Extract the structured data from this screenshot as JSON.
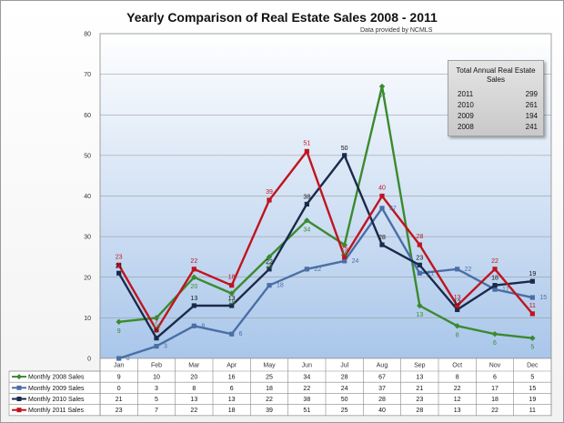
{
  "chart_data": {
    "type": "line",
    "title": "Yearly  Comparison of Real Estate Sales 2008 - 2011",
    "subtitle": "Data provided by NCMLS",
    "categories": [
      "Jan",
      "Feb",
      "Mar",
      "Apr",
      "May",
      "Jun",
      "Jul",
      "Aug",
      "Sep",
      "Oct",
      "Nov",
      "Dec"
    ],
    "ylim": [
      0,
      80
    ],
    "yticks": [
      0,
      10,
      20,
      30,
      40,
      50,
      60,
      70,
      80
    ],
    "grid": true,
    "legend_position": "data-table-bottom",
    "series": [
      {
        "name": "Monthly 2008 Sales",
        "color": "#3a8a2f",
        "marker": "diamond",
        "values": [
          9,
          10,
          20,
          16,
          25,
          34,
          28,
          67,
          13,
          8,
          6,
          5
        ]
      },
      {
        "name": "Monthly 2009 Sales",
        "color": "#4a6fa5",
        "marker": "square",
        "values": [
          0,
          3,
          8,
          6,
          18,
          22,
          24,
          37,
          21,
          22,
          17,
          15
        ]
      },
      {
        "name": "Monthly 2010 Sales",
        "color": "#1a2a4a",
        "marker": "square",
        "values": [
          21,
          5,
          13,
          13,
          22,
          38,
          50,
          28,
          23,
          12,
          18,
          19
        ]
      },
      {
        "name": "Monthly 2011 Sales",
        "color": "#c0141e",
        "marker": "square",
        "values": [
          23,
          7,
          22,
          18,
          39,
          51,
          25,
          40,
          28,
          13,
          22,
          11
        ]
      }
    ],
    "totals_box": {
      "title": "Total Annual Real Estate Sales",
      "rows": [
        {
          "year": "2011",
          "total": "299"
        },
        {
          "year": "2010",
          "total": "261"
        },
        {
          "year": "2009",
          "total": "194"
        },
        {
          "year": "2008",
          "total": "241"
        }
      ]
    }
  }
}
